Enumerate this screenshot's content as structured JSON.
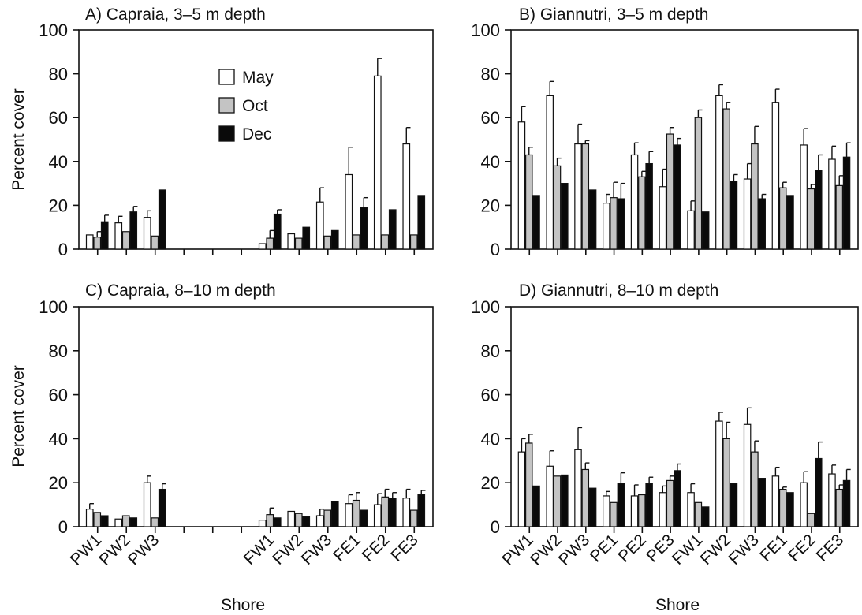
{
  "colors": {
    "May": "#ffffff",
    "Oct": "#c4c4c4",
    "Dec": "#0a0a0a",
    "axis": "#111111"
  },
  "legend": {
    "items": [
      "May",
      "Oct",
      "Dec"
    ],
    "placement": "upper-left of panel A"
  },
  "chart_data": [
    {
      "type": "bar",
      "title": "A) Capraia, 3–5 m depth",
      "xlabel": "",
      "ylabel": "Percent cover",
      "ylim": [
        0,
        100
      ],
      "yticks": [
        0,
        20,
        40,
        60,
        80,
        100
      ],
      "grid": false,
      "categories": [
        "PW1",
        "PW2",
        "PW3",
        "",
        "",
        "",
        "FW1",
        "FW2",
        "FW3",
        "FE1",
        "FE2",
        "FE3"
      ],
      "series": [
        {
          "name": "May",
          "values": [
            6.5,
            12,
            14.5,
            0,
            0,
            0,
            2.5,
            7,
            21.5,
            34,
            79,
            48
          ],
          "errors": [
            0,
            3,
            3,
            0,
            0,
            0,
            0,
            0,
            6.5,
            12.5,
            8,
            7.5
          ]
        },
        {
          "name": "Oct",
          "values": [
            5.5,
            8,
            6,
            0,
            0,
            0,
            5,
            5,
            6,
            6.5,
            6.5,
            6.5
          ],
          "errors": [
            2.5,
            0,
            0,
            0,
            0,
            0,
            3.5,
            0,
            0,
            0,
            0,
            0
          ]
        },
        {
          "name": "Dec",
          "values": [
            12.5,
            17,
            27,
            0,
            0,
            0,
            16,
            10,
            8.5,
            19,
            18,
            24.5
          ],
          "errors": [
            3,
            2.5,
            0,
            0,
            0,
            0,
            2,
            0,
            0,
            4.5,
            0,
            0
          ]
        }
      ]
    },
    {
      "type": "bar",
      "title": "B) Giannutri, 3–5 m depth",
      "xlabel": "Shore",
      "ylabel": "",
      "ylim": [
        0,
        100
      ],
      "yticks": [
        0,
        20,
        40,
        60,
        80,
        100
      ],
      "grid": false,
      "categories": [
        "PW1",
        "PW2",
        "PW3",
        "PE1",
        "PE2",
        "PE3",
        "FW1",
        "FW2",
        "FW3",
        "FE1",
        "FE2",
        "FE3"
      ],
      "series": [
        {
          "name": "May",
          "values": [
            58,
            70,
            48,
            21,
            43,
            28.5,
            17.5,
            70,
            32,
            67,
            47.5,
            41
          ],
          "errors": [
            7,
            6.5,
            9,
            4,
            5.5,
            8,
            4.5,
            5,
            7,
            6,
            7.5,
            6
          ]
        },
        {
          "name": "Oct",
          "values": [
            43,
            38,
            48,
            23.5,
            33,
            52.5,
            60,
            64,
            48,
            28,
            27.5,
            29
          ],
          "errors": [
            3.5,
            3.5,
            1.5,
            7,
            2.5,
            3,
            3.5,
            3,
            8,
            2.5,
            2,
            4.5
          ]
        },
        {
          "name": "Dec",
          "values": [
            24.5,
            30,
            27,
            23,
            39,
            47.5,
            17,
            31,
            23,
            24.5,
            36,
            42
          ],
          "errors": [
            0,
            0,
            0,
            7,
            5.5,
            3,
            0,
            3,
            2,
            0,
            7,
            6.5
          ]
        }
      ]
    },
    {
      "type": "bar",
      "title": "C) Capraia, 8–10 m depth",
      "xlabel": "",
      "ylabel": "Percent cover",
      "ylim": [
        0,
        100
      ],
      "yticks": [
        0,
        20,
        40,
        60,
        80,
        100
      ],
      "grid": false,
      "categories": [
        "PW1",
        "PW2",
        "PW3",
        "",
        "",
        "",
        "FW1",
        "FW2",
        "FW3",
        "FE1",
        "FE2",
        "FE3"
      ],
      "series": [
        {
          "name": "May",
          "values": [
            8,
            3.5,
            20,
            0,
            0,
            0,
            3,
            7,
            5,
            10.5,
            10,
            13
          ],
          "errors": [
            2.5,
            0,
            3,
            0,
            0,
            0,
            0,
            0,
            3,
            4,
            5,
            4
          ]
        },
        {
          "name": "Oct",
          "values": [
            6.5,
            5,
            4,
            0,
            0,
            0,
            5.5,
            6,
            7.5,
            12,
            13.5,
            7.5
          ],
          "errors": [
            0,
            0,
            0,
            0,
            0,
            0,
            3,
            0,
            0,
            3.5,
            3.5,
            0
          ]
        },
        {
          "name": "Dec",
          "values": [
            5,
            4,
            17,
            0,
            0,
            0,
            4,
            4.5,
            11.5,
            7.5,
            13,
            14.5
          ],
          "errors": [
            0,
            0,
            2.5,
            0,
            0,
            0,
            0,
            0,
            0,
            0,
            2.5,
            2
          ]
        }
      ]
    },
    {
      "type": "bar",
      "title": "D) Giannutri, 8–10 m depth",
      "xlabel": "Shore",
      "ylabel": "",
      "ylim": [
        0,
        100
      ],
      "yticks": [
        0,
        20,
        40,
        60,
        80,
        100
      ],
      "grid": false,
      "categories": [
        "PW1",
        "PW2",
        "PW3",
        "PE1",
        "PE2",
        "PE3",
        "FW1",
        "FW2",
        "FW3",
        "FE1",
        "FE2",
        "FE3"
      ],
      "series": [
        {
          "name": "May",
          "values": [
            34,
            27.5,
            35,
            14,
            14,
            15.5,
            15.5,
            48,
            46.5,
            23,
            20,
            24
          ],
          "errors": [
            6,
            7,
            10,
            2,
            5,
            3,
            4,
            4,
            7.5,
            4,
            5,
            4
          ]
        },
        {
          "name": "Oct",
          "values": [
            38,
            23,
            26,
            11,
            14.5,
            21,
            11,
            40,
            34,
            17,
            6,
            17
          ],
          "errors": [
            4,
            0,
            3,
            0,
            0,
            2,
            0,
            7.5,
            5,
            1,
            0,
            2
          ]
        },
        {
          "name": "Dec",
          "values": [
            18.5,
            23.5,
            17.5,
            19.5,
            19.5,
            25.5,
            9,
            19.5,
            22,
            15.5,
            31,
            21
          ],
          "errors": [
            0,
            0,
            0,
            5,
            3,
            3,
            0,
            0,
            0,
            0,
            7.5,
            5
          ]
        }
      ]
    }
  ]
}
